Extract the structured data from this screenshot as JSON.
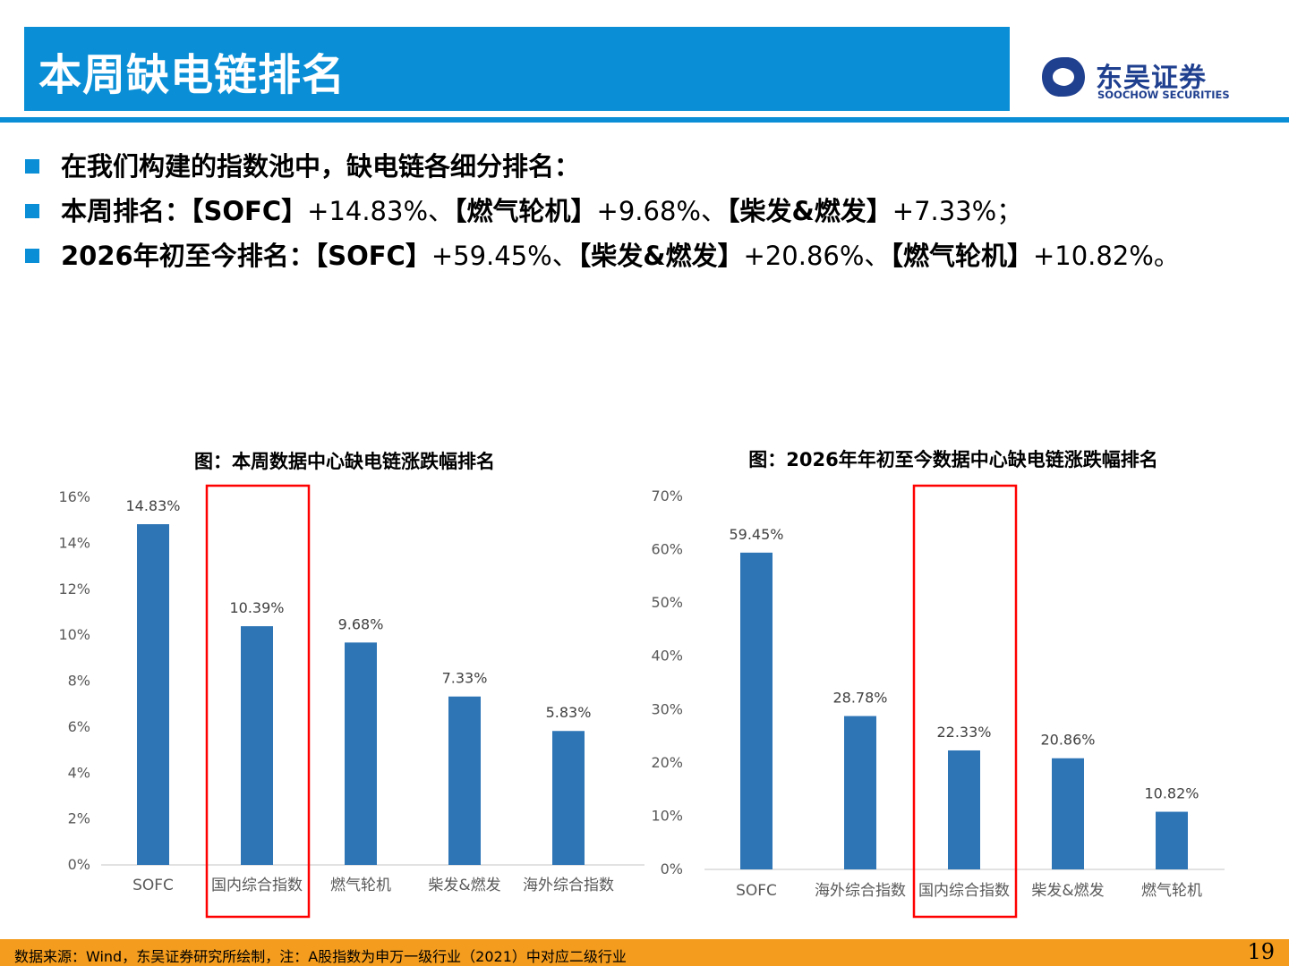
{
  "header": {
    "title": "本周缺电链排名",
    "logo_name": "东吴证券",
    "logo_en": "SOOCHOW SECURITIES"
  },
  "bullets": [
    {
      "parts": [
        {
          "text": "在我们构建的指数池中，缺电链各细分排名：",
          "bold": true
        }
      ]
    },
    {
      "parts": [
        {
          "text": "本周排名：【SOFC】",
          "bold": true
        },
        {
          "text": "+14.83%、",
          "bold": false
        },
        {
          "text": "【燃气轮机】",
          "bold": true
        },
        {
          "text": "+9.68%、",
          "bold": false
        },
        {
          "text": "【柴发&燃发】",
          "bold": true
        },
        {
          "text": "+7.33%；",
          "bold": false
        }
      ]
    },
    {
      "parts": [
        {
          "text": "2026年初至今排名：【SOFC】",
          "bold": true
        },
        {
          "text": "+59.45%、",
          "bold": false
        },
        {
          "text": "【柴发&燃发】",
          "bold": true
        },
        {
          "text": "+20.86%、",
          "bold": false
        },
        {
          "text": "【燃气轮机】",
          "bold": true
        },
        {
          "text": "+10.82%。",
          "bold": false
        }
      ]
    }
  ],
  "colors": {
    "bar": "#2e75b6",
    "highlight": "#ff0000",
    "accent": "#0a8fd6",
    "footer": "#f39c1e"
  },
  "chart_data": [
    {
      "type": "bar",
      "title": "图：本周数据中心缺电链涨跌幅排名",
      "categories": [
        "SOFC",
        "国内综合指数",
        "燃气轮机",
        "柴发&燃发",
        "海外综合指数"
      ],
      "values": [
        14.83,
        10.39,
        9.68,
        7.33,
        5.83
      ],
      "value_labels": [
        "14.83%",
        "10.39%",
        "9.68%",
        "7.33%",
        "5.83%"
      ],
      "ylim": [
        0,
        16
      ],
      "yticks": [
        "0%",
        "2%",
        "4%",
        "6%",
        "8%",
        "10%",
        "12%",
        "14%",
        "16%"
      ],
      "highlight_category": "国内综合指数",
      "grid": false
    },
    {
      "type": "bar",
      "title": "图：2026年年初至今数据中心缺电链涨跌幅排名",
      "categories": [
        "SOFC",
        "海外综合指数",
        "国内综合指数",
        "柴发&燃发",
        "燃气轮机"
      ],
      "values": [
        59.45,
        28.78,
        22.33,
        20.86,
        10.82
      ],
      "value_labels": [
        "59.45%",
        "28.78%",
        "22.33%",
        "20.86%",
        "10.82%"
      ],
      "ylim": [
        0,
        70
      ],
      "yticks": [
        "0%",
        "10%",
        "20%",
        "30%",
        "40%",
        "50%",
        "60%",
        "70%"
      ],
      "highlight_category": "国内综合指数",
      "grid": false
    }
  ],
  "footer": {
    "source": "数据来源：Wind，东吴证券研究所绘制，注：A股指数为申万一级行业（2021）中对应二级行业",
    "page": "19"
  }
}
